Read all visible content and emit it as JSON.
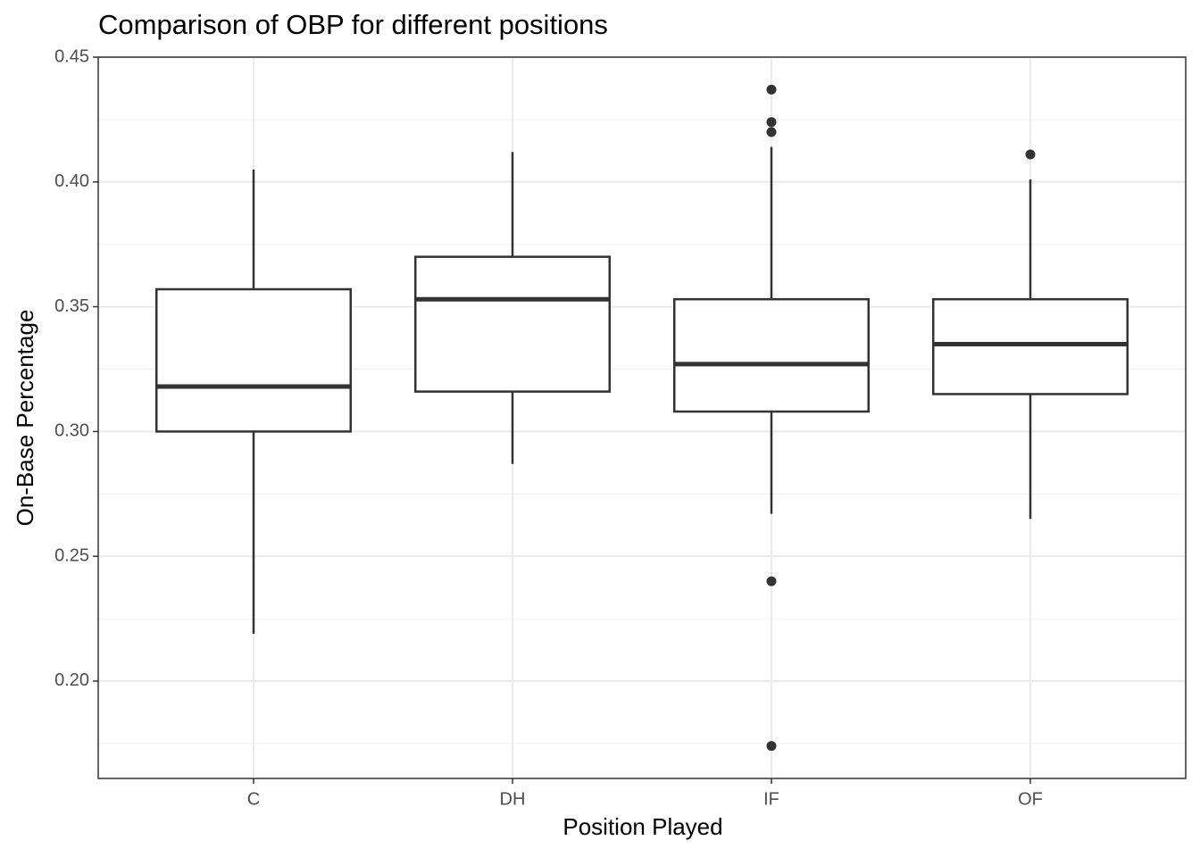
{
  "chart_data": {
    "type": "boxplot",
    "title": "Comparison of OBP for different positions",
    "x_label": "Position Played",
    "y_label": "On-Base Percentage",
    "categories": [
      "C",
      "DH",
      "IF",
      "OF"
    ],
    "whisker_low": [
      0.219,
      0.287,
      0.267,
      0.265
    ],
    "q1": [
      0.3,
      0.316,
      0.308,
      0.315
    ],
    "median": [
      0.318,
      0.353,
      0.327,
      0.335
    ],
    "q3": [
      0.357,
      0.37,
      0.353,
      0.353
    ],
    "whisker_high": [
      0.405,
      0.412,
      0.414,
      0.401
    ],
    "outliers": [
      [],
      [],
      [
        0.437,
        0.424,
        0.42,
        0.24,
        0.174
      ],
      [
        0.411
      ]
    ],
    "color": "#333333",
    "ylim": [
      0.161,
      0.45
    ],
    "yticks": [
      {
        "value": 0.2,
        "label": "0.20"
      },
      0.25,
      {
        "value": 0.3,
        "label": "0.30"
      },
      0.35,
      {
        "value": 0.4,
        "label": "0.40"
      },
      0.45
    ],
    "grid": true
  }
}
